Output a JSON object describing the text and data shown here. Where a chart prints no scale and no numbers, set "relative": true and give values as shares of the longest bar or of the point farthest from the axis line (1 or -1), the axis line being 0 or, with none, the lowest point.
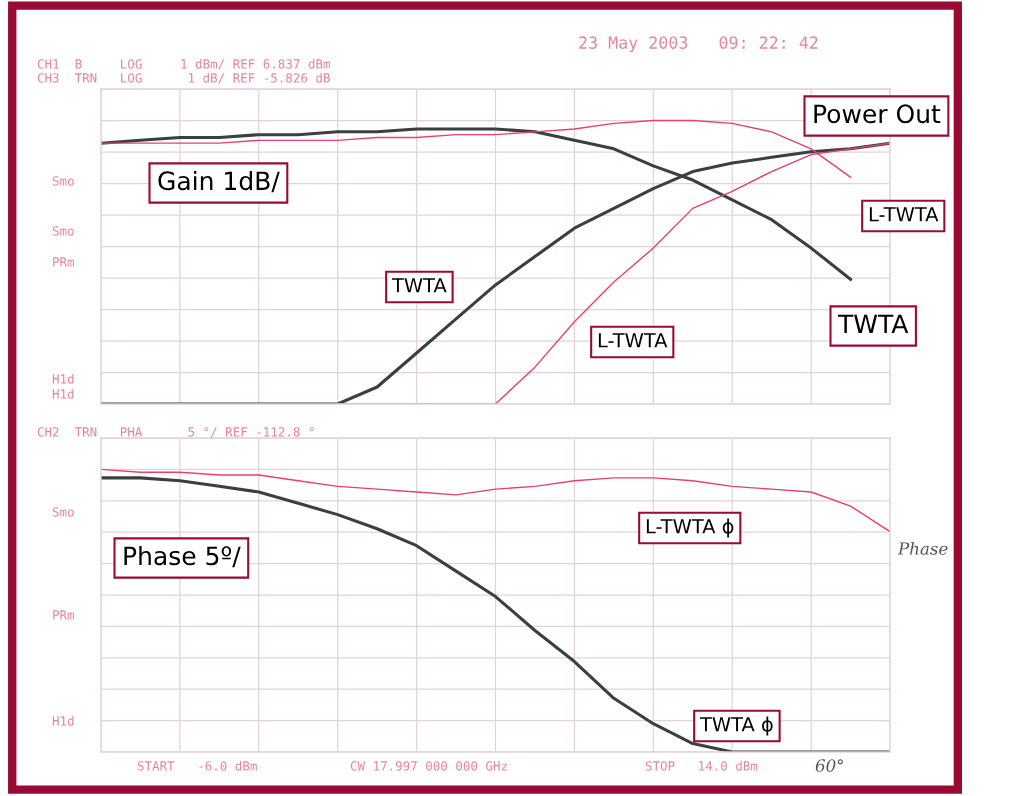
{
  "chart_data": [
    {
      "type": "line",
      "relative": true,
      "categories": [
        null,
        null,
        null,
        null,
        null,
        null,
        null,
        null,
        null,
        null,
        null,
        null,
        null,
        null,
        null,
        null,
        null,
        null,
        null,
        null,
        null
      ],
      "grid": true,
      "annotations": [
        "CH1  B     LOG     1 dBm/ REF 6.837 dBm",
        "CH3  TRN   LOG      1 dB/ REF -5.826 dB",
        "23 May 2003   09: 22: 42",
        "Smo",
        "Smo",
        "PRm",
        "H1d",
        "H1d",
        "Gain 1dB/",
        "Power Out"
      ],
      "series": [
        {
          "name": "TWTA",
          "color": "#3a3f3f",
          "values": [
            0,
            0,
            0,
            0,
            0,
            0,
            0,
            0.06,
            0.18,
            0.3,
            0.42,
            0.52,
            0.62,
            0.69,
            0.76,
            0.82,
            0.85,
            0.87,
            0.89,
            0.9,
            0.92
          ]
        },
        {
          "name": "TWTA",
          "color": "#3a3f3f",
          "values": [
            0.92,
            0.93,
            0.94,
            0.94,
            0.95,
            0.95,
            0.96,
            0.96,
            0.97,
            0.97,
            0.97,
            0.96,
            0.93,
            0.9,
            0.84,
            0.79,
            0.72,
            0.65,
            0.55,
            0.44,
            null
          ]
        },
        {
          "name": "L-TWTA",
          "color": "#e8406e",
          "values": [
            null,
            null,
            null,
            null,
            null,
            null,
            0,
            0,
            0,
            0,
            0,
            0.13,
            0.29,
            0.43,
            0.55,
            0.69,
            0.75,
            0.82,
            0.88,
            0.9,
            0.92
          ]
        },
        {
          "name": "L-TWTA",
          "color": "#e8406e",
          "values": [
            0.92,
            0.92,
            0.92,
            0.92,
            0.93,
            0.93,
            0.93,
            0.94,
            0.94,
            0.95,
            0.95,
            0.96,
            0.97,
            0.99,
            1.0,
            1.0,
            0.99,
            0.96,
            0.9,
            0.8,
            null
          ]
        }
      ]
    },
    {
      "type": "line",
      "relative": true,
      "categories": [
        null,
        null,
        null,
        null,
        null,
        null,
        null,
        null,
        null,
        null,
        null,
        null,
        null,
        null,
        null,
        null,
        null,
        null,
        null,
        null,
        null
      ],
      "grid": true,
      "annotations": [
        "CH2  TRN   PHA      5 °/ REF -112.8 °",
        "Smo",
        "PRm",
        "H1d",
        "Phase 5º/",
        "START   -6.0 dBm",
        "CW 17.997 000 000 GHz",
        "STOP   14.0 dBm",
        "60°",
        "Phase"
      ],
      "series": [
        {
          "name": "TWTA ϕ",
          "color": "#3a3f3f",
          "values": [
            0.97,
            0.97,
            0.96,
            0.94,
            0.92,
            0.88,
            0.84,
            0.79,
            0.73,
            0.64,
            0.55,
            0.43,
            0.32,
            0.19,
            0.1,
            0.03,
            0,
            0,
            0,
            0,
            0
          ]
        },
        {
          "name": "L-TWTA ϕ",
          "color": "#e8406e",
          "values": [
            1.0,
            0.99,
            0.99,
            0.98,
            0.98,
            0.96,
            0.94,
            0.93,
            0.92,
            0.91,
            0.93,
            0.94,
            0.96,
            0.97,
            0.97,
            0.96,
            0.94,
            0.93,
            0.92,
            0.87,
            0.78
          ]
        }
      ]
    }
  ]
}
